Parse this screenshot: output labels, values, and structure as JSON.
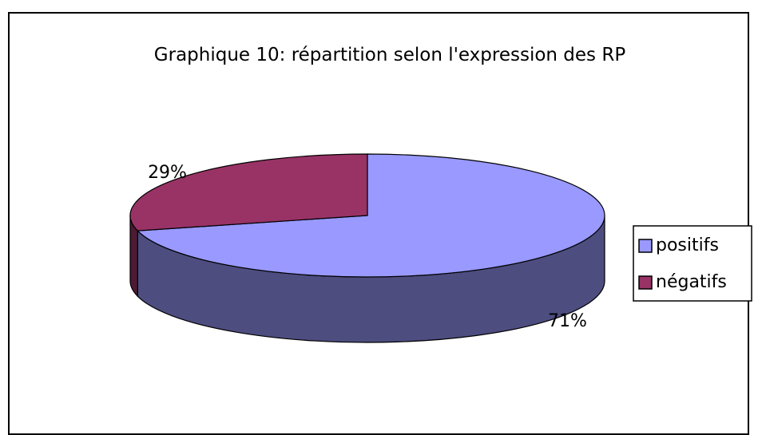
{
  "chart_data": {
    "type": "pie",
    "title": "Graphique 10: répartition selon l'expression des RP",
    "categories": [
      "positifs",
      "négatifs"
    ],
    "values": [
      71,
      29
    ],
    "value_labels": [
      "71%",
      "29%"
    ],
    "colors": [
      "#9999ff",
      "#993366"
    ],
    "side_colors": [
      "#4d4d80",
      "#4d1a33"
    ],
    "legend": "right"
  }
}
